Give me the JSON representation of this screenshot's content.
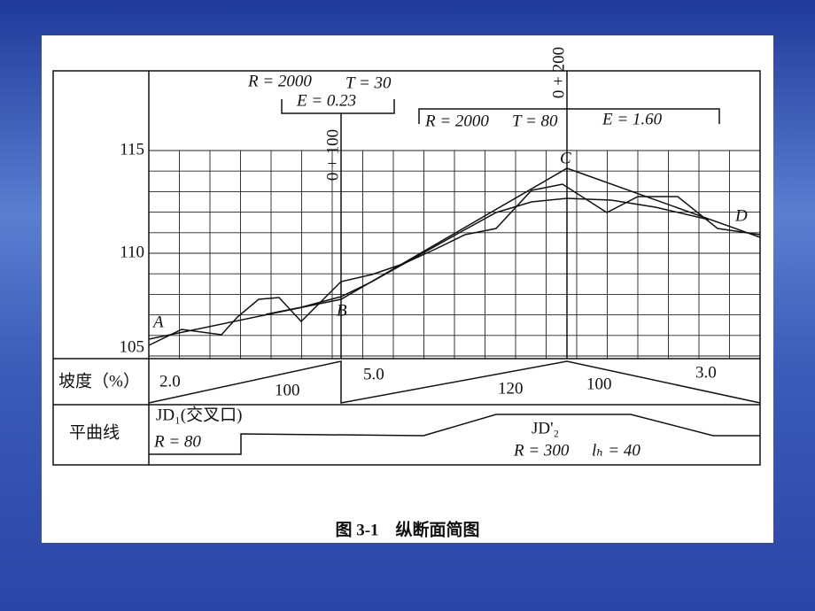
{
  "figure": {
    "top_left": {
      "r": "R = 2000",
      "t": "T = 30",
      "e": "E = 0.23"
    },
    "top_right": {
      "r": "R = 2000",
      "t": "T = 80",
      "e": "E = 1.60"
    },
    "stations": [
      "0 + 100",
      "0 + 200"
    ],
    "points": [
      "A",
      "B",
      "C",
      "D"
    ],
    "elevations": [
      "115",
      "110",
      "105"
    ],
    "slope_row": {
      "label": "坡度（%）",
      "items": [
        "2.0",
        "100",
        "5.0",
        "120",
        "100",
        "3.0"
      ]
    },
    "curve_row": {
      "label": "平曲线",
      "jd1": "JD₁(交叉口)",
      "r1": "R = 80",
      "jd2": "JD'₂",
      "r2": "R = 300",
      "lh": "lₕ = 40"
    },
    "caption": "图 3-1　纵断面简图"
  }
}
